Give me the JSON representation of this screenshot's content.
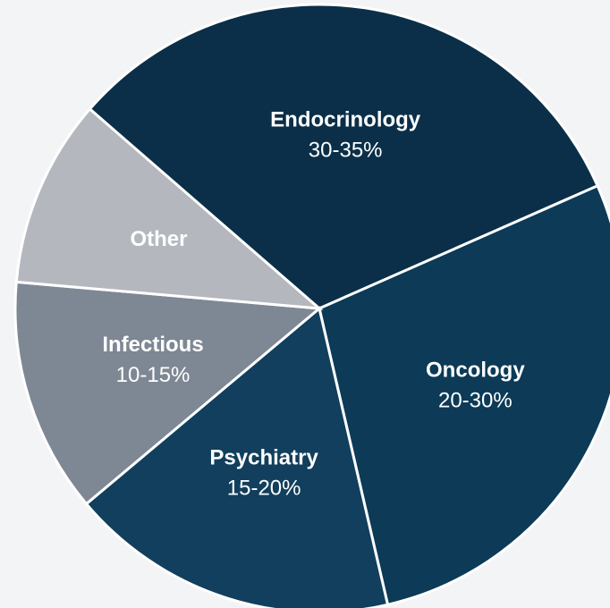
{
  "chart_data": {
    "type": "pie",
    "categories": [
      "Endocrinology",
      "Oncology",
      "Psychiatry",
      "Infectious",
      "Other"
    ],
    "values": [
      32,
      28,
      17.5,
      12.5,
      10
    ],
    "value_labels": [
      "30-35%",
      "20-30%",
      "15-20%",
      "10-15%",
      null
    ],
    "colors": [
      "#0b2f48",
      "#0c3a57",
      "#113f5d",
      "#7e8894",
      "#b4b8be"
    ]
  }
}
